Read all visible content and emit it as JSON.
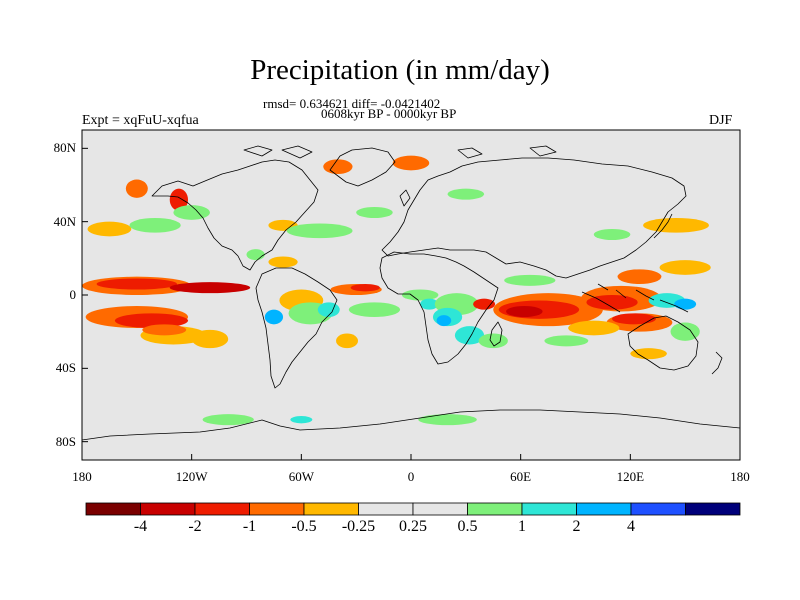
{
  "title": "Precipitation (in mm/day)",
  "subtitle_stats": "rmsd= 0.634621 diff= -0.0421402",
  "subtitle_period": "0608kyr BP - 0000kyr BP",
  "left_label": "Expt = xqFuU-xqfua",
  "right_label": "DJF",
  "y_axis": {
    "ticks": [
      {
        "label": "80N",
        "lat": 80
      },
      {
        "label": "40N",
        "lat": 40
      },
      {
        "label": "0",
        "lat": 0
      },
      {
        "label": "40S",
        "lat": -40
      },
      {
        "label": "80S",
        "lat": -80
      }
    ]
  },
  "x_axis": {
    "ticks": [
      {
        "label": "180",
        "lon": -180
      },
      {
        "label": "120W",
        "lon": -120
      },
      {
        "label": "60W",
        "lon": -60
      },
      {
        "label": "0",
        "lon": 0
      },
      {
        "label": "60E",
        "lon": 60
      },
      {
        "label": "120E",
        "lon": 120
      },
      {
        "label": "180",
        "lon": 180
      }
    ]
  },
  "colorbar": {
    "colors": [
      "#7a0000",
      "#c80000",
      "#ee1c00",
      "#ff6a00",
      "#ffb800",
      "#e6e6e6",
      "#e6e6e6",
      "#7ef07a",
      "#2ee6d6",
      "#00b4ff",
      "#1e50ff",
      "#00007a"
    ],
    "labels": [
      "-4",
      "-2",
      "-1",
      "-0.5",
      "-0.25",
      "0.25",
      "0.5",
      "1",
      "2",
      "4"
    ]
  },
  "colors": {
    "ocean_neutral": "#e6e6e6",
    "coast": "#000000"
  },
  "anomaly_regions": [
    {
      "name": "central pacific dry band north",
      "lon": -150,
      "lat": 5,
      "rx": 30,
      "ry": 5,
      "color": "#ff6a00"
    },
    {
      "name": "central pacific dry core north",
      "lon": -150,
      "lat": 6,
      "rx": 22,
      "ry": 3,
      "color": "#ee1c00"
    },
    {
      "name": "eastern pacific dry core",
      "lon": -110,
      "lat": 4,
      "rx": 22,
      "ry": 3,
      "color": "#c80000"
    },
    {
      "name": "south pacific convergence dry",
      "lon": -150,
      "lat": -12,
      "rx": 28,
      "ry": 6,
      "color": "#ff6a00"
    },
    {
      "name": "south pacific dry core",
      "lon": -142,
      "lat": -14,
      "rx": 20,
      "ry": 4,
      "color": "#ee1c00"
    },
    {
      "name": "south pacific dry tail",
      "lon": -130,
      "lat": -22,
      "rx": 18,
      "ry": 5,
      "color": "#ffb800"
    },
    {
      "name": "south pacific dry tail core",
      "lon": -135,
      "lat": -19,
      "rx": 12,
      "ry": 3,
      "color": "#ff6a00"
    },
    {
      "name": "southeast pacific dry",
      "lon": -110,
      "lat": -24,
      "rx": 10,
      "ry": 5,
      "color": "#ffb800"
    },
    {
      "name": "north pacific orange patch",
      "lon": -165,
      "lat": 36,
      "rx": 12,
      "ry": 4,
      "color": "#ffb800"
    },
    {
      "name": "north pacific green",
      "lon": -140,
      "lat": 38,
      "rx": 14,
      "ry": 4,
      "color": "#7ef07a"
    },
    {
      "name": "alaska wet",
      "lon": -150,
      "lat": 58,
      "rx": 6,
      "ry": 5,
      "color": "#ff6a00"
    },
    {
      "name": "canada coast dry",
      "lon": -127,
      "lat": 52,
      "rx": 5,
      "ry": 6,
      "color": "#ee1c00"
    },
    {
      "name": "north america green",
      "lon": -120,
      "lat": 45,
      "rx": 10,
      "ry": 4,
      "color": "#7ef07a"
    },
    {
      "name": "north atlantic orange",
      "lon": -70,
      "lat": 38,
      "rx": 8,
      "ry": 3,
      "color": "#ffb800"
    },
    {
      "name": "north atlantic green",
      "lon": -50,
      "lat": 35,
      "rx": 18,
      "ry": 4,
      "color": "#7ef07a"
    },
    {
      "name": "north atlantic green 2",
      "lon": -20,
      "lat": 45,
      "rx": 10,
      "ry": 3,
      "color": "#7ef07a"
    },
    {
      "name": "caribbean orange",
      "lon": -70,
      "lat": 18,
      "rx": 8,
      "ry": 3,
      "color": "#ffb800"
    },
    {
      "name": "gulf green",
      "lon": -85,
      "lat": 22,
      "rx": 5,
      "ry": 3,
      "color": "#7ef07a"
    },
    {
      "name": "greenland dry",
      "lon": -40,
      "lat": 70,
      "rx": 8,
      "ry": 4,
      "color": "#ff6a00"
    },
    {
      "name": "norway dry",
      "lon": 0,
      "lat": 72,
      "rx": 10,
      "ry": 4,
      "color": "#ff6a00"
    },
    {
      "name": "europe green",
      "lon": 30,
      "lat": 55,
      "rx": 10,
      "ry": 3,
      "color": "#7ef07a"
    },
    {
      "name": "atlantic itcz dry",
      "lon": -30,
      "lat": 3,
      "rx": 14,
      "ry": 3,
      "color": "#ff6a00"
    },
    {
      "name": "atlantic itcz dry core",
      "lon": -25,
      "lat": 4,
      "rx": 8,
      "ry": 2,
      "color": "#ee1c00"
    },
    {
      "name": "amazon orange",
      "lon": -60,
      "lat": -3,
      "rx": 12,
      "ry": 6,
      "color": "#ffb800"
    },
    {
      "name": "amazon green",
      "lon": -55,
      "lat": -10,
      "rx": 12,
      "ry": 6,
      "color": "#7ef07a"
    },
    {
      "name": "brazil blue",
      "lon": -45,
      "lat": -8,
      "rx": 6,
      "ry": 4,
      "color": "#2ee6d6"
    },
    {
      "name": "andes blue",
      "lon": -75,
      "lat": -12,
      "rx": 5,
      "ry": 4,
      "color": "#00b4ff"
    },
    {
      "name": "south atlantic orange",
      "lon": -35,
      "lat": -25,
      "rx": 6,
      "ry": 4,
      "color": "#ffb800"
    },
    {
      "name": "south atlantic green",
      "lon": -20,
      "lat": -8,
      "rx": 14,
      "ry": 4,
      "color": "#7ef07a"
    },
    {
      "name": "west africa green",
      "lon": 5,
      "lat": 0,
      "rx": 10,
      "ry": 3,
      "color": "#7ef07a"
    },
    {
      "name": "west africa blue",
      "lon": 10,
      "lat": -5,
      "rx": 5,
      "ry": 3,
      "color": "#2ee6d6"
    },
    {
      "name": "central africa green",
      "lon": 25,
      "lat": -5,
      "rx": 12,
      "ry": 6,
      "color": "#7ef07a"
    },
    {
      "name": "central africa blue",
      "lon": 20,
      "lat": -12,
      "rx": 8,
      "ry": 5,
      "color": "#2ee6d6"
    },
    {
      "name": "central africa deep blue",
      "lon": 18,
      "lat": -14,
      "rx": 4,
      "ry": 3,
      "color": "#00b4ff"
    },
    {
      "name": "southern africa blue",
      "lon": 32,
      "lat": -22,
      "rx": 8,
      "ry": 5,
      "color": "#2ee6d6"
    },
    {
      "name": "madagascar green",
      "lon": 45,
      "lat": -25,
      "rx": 8,
      "ry": 4,
      "color": "#7ef07a"
    },
    {
      "name": "east africa red",
      "lon": 40,
      "lat": -5,
      "rx": 6,
      "ry": 3,
      "color": "#ee1c00"
    },
    {
      "name": "indian ocean dry broad",
      "lon": 75,
      "lat": -8,
      "rx": 30,
      "ry": 9,
      "color": "#ff6a00"
    },
    {
      "name": "indian ocean dry core",
      "lon": 70,
      "lat": -8,
      "rx": 22,
      "ry": 5,
      "color": "#ee1c00"
    },
    {
      "name": "indian ocean deep dry",
      "lon": 62,
      "lat": -9,
      "rx": 10,
      "ry": 3,
      "color": "#c80000"
    },
    {
      "name": "indian ocean green north",
      "lon": 65,
      "lat": 8,
      "rx": 14,
      "ry": 3,
      "color": "#7ef07a"
    },
    {
      "name": "maritime continent dry",
      "lon": 115,
      "lat": -2,
      "rx": 22,
      "ry": 7,
      "color": "#ff6a00"
    },
    {
      "name": "maritime continent dry core",
      "lon": 110,
      "lat": -4,
      "rx": 14,
      "ry": 4,
      "color": "#ee1c00"
    },
    {
      "name": "philippines dry",
      "lon": 125,
      "lat": 10,
      "rx": 12,
      "ry": 4,
      "color": "#ff6a00"
    },
    {
      "name": "west pacific orange",
      "lon": 150,
      "lat": 15,
      "rx": 14,
      "ry": 4,
      "color": "#ffb800"
    },
    {
      "name": "west pacific blue",
      "lon": 140,
      "lat": -3,
      "rx": 10,
      "ry": 4,
      "color": "#2ee6d6"
    },
    {
      "name": "west pacific deep blue",
      "lon": 150,
      "lat": -5,
      "rx": 6,
      "ry": 3,
      "color": "#00b4ff"
    },
    {
      "name": "australia north dry",
      "lon": 125,
      "lat": -15,
      "rx": 18,
      "ry": 5,
      "color": "#ff6a00"
    },
    {
      "name": "australia north dry core",
      "lon": 122,
      "lat": -13,
      "rx": 12,
      "ry": 3,
      "color": "#ee1c00"
    },
    {
      "name": "australia east green",
      "lon": 150,
      "lat": -20,
      "rx": 8,
      "ry": 5,
      "color": "#7ef07a"
    },
    {
      "name": "south indian orange",
      "lon": 100,
      "lat": -18,
      "rx": 14,
      "ry": 4,
      "color": "#ffb800"
    },
    {
      "name": "south indian green",
      "lon": 85,
      "lat": -25,
      "rx": 12,
      "ry": 3,
      "color": "#7ef07a"
    },
    {
      "name": "australia south orange",
      "lon": 130,
      "lat": -32,
      "rx": 10,
      "ry": 3,
      "color": "#ffb800"
    },
    {
      "name": "east asia green",
      "lon": 110,
      "lat": 33,
      "rx": 10,
      "ry": 3,
      "color": "#7ef07a"
    },
    {
      "name": "japan orange",
      "lon": 145,
      "lat": 38,
      "rx": 18,
      "ry": 4,
      "color": "#ffb800"
    },
    {
      "name": "southern ocean green",
      "lon": -100,
      "lat": -68,
      "rx": 14,
      "ry": 3,
      "color": "#7ef07a"
    },
    {
      "name": "southern ocean green 2",
      "lon": 20,
      "lat": -68,
      "rx": 16,
      "ry": 3,
      "color": "#7ef07a"
    },
    {
      "name": "southern ocean blue",
      "lon": -60,
      "lat": -68,
      "rx": 6,
      "ry": 2,
      "color": "#2ee6d6"
    }
  ]
}
